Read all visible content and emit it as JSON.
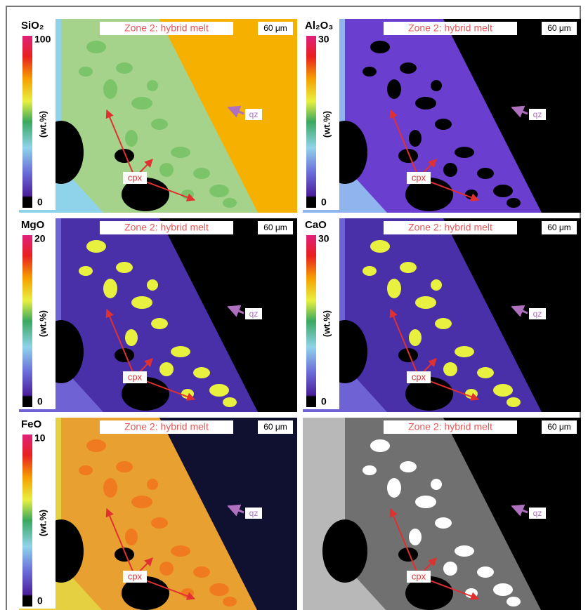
{
  "panels": [
    {
      "element": "SiO₂",
      "scale_max": 100,
      "scale_min": 0,
      "unit": "(wt.%)",
      "title": "Zone 2: hybrid melt",
      "scale_bar": "60 μm",
      "qz": "qz",
      "cpx": "cpx"
    },
    {
      "element": "Al₂O₃",
      "scale_max": 30,
      "scale_min": 0,
      "unit": "(wt.%)",
      "title": "Zone 2: hybrid melt",
      "scale_bar": "60 μm",
      "qz": "qz",
      "cpx": "cpx"
    },
    {
      "element": "MgO",
      "scale_max": 20,
      "scale_min": 0,
      "unit": "(wt.%)",
      "title": "Zone 2: hybrid melt",
      "scale_bar": "60 μm",
      "qz": "qz",
      "cpx": "cpx"
    },
    {
      "element": "CaO",
      "scale_max": 30,
      "scale_min": 0,
      "unit": "(wt.%)",
      "title": "Zone 2: hybrid melt",
      "scale_bar": "60 μm",
      "qz": "qz",
      "cpx": "cpx"
    },
    {
      "element": "FeO",
      "scale_max": 10,
      "scale_min": 0,
      "unit": "(wt.%)",
      "title": "Zone 2: hybrid melt",
      "scale_bar": "60 μm",
      "qz": "qz",
      "cpx": "cpx"
    },
    {
      "title": "Zone 2: hybrid melt",
      "scale_bar": "60 μm",
      "qz": "qz",
      "cpx": "cpx"
    }
  ]
}
